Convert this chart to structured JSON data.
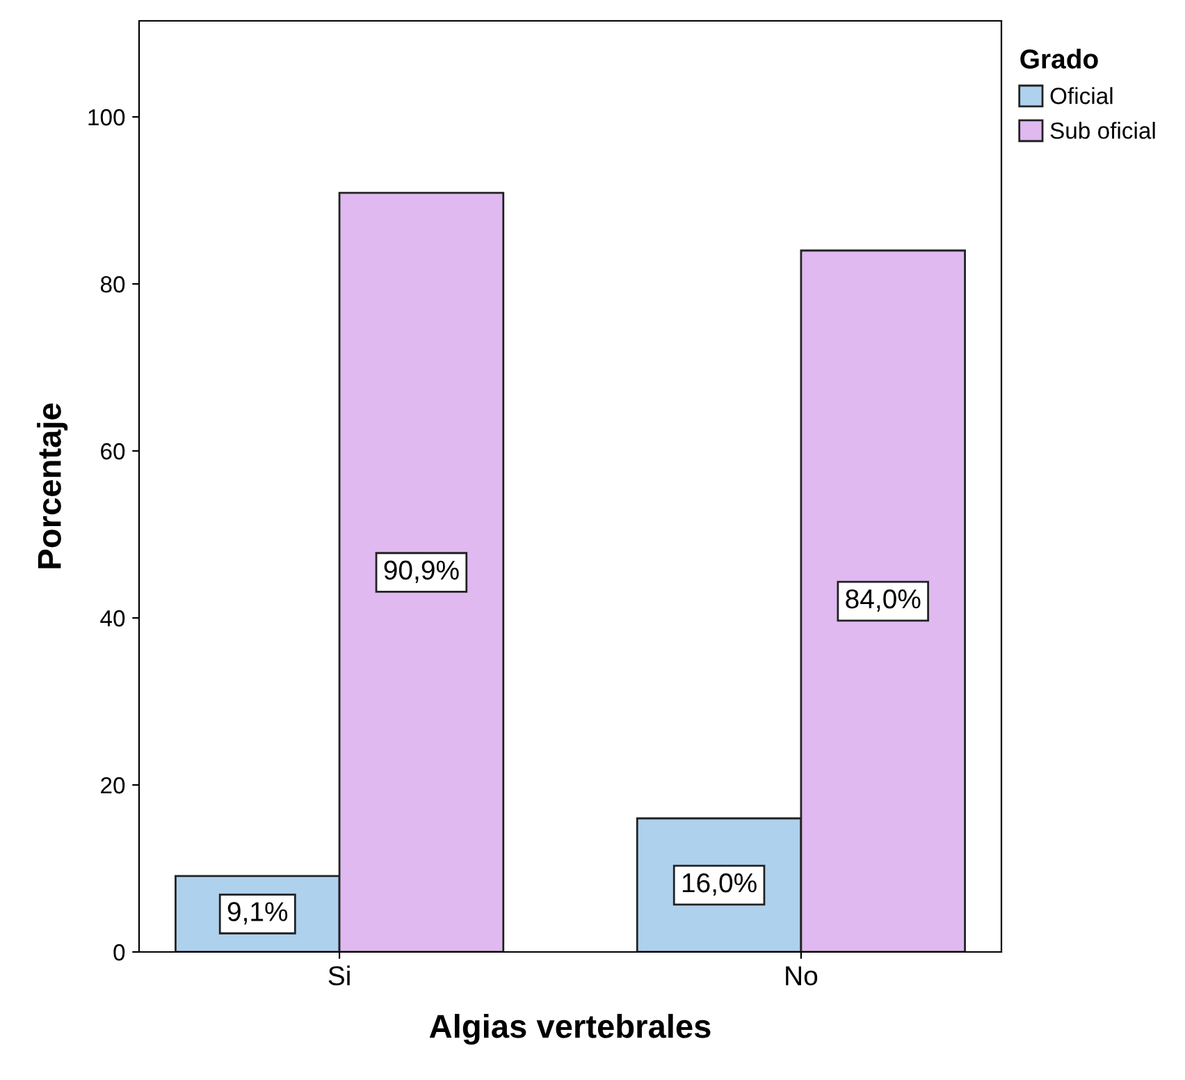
{
  "chart_data": {
    "type": "bar",
    "xlabel": "Algias vertebrales",
    "ylabel": "Porcentaje",
    "legend_title": "Grado",
    "categories": [
      "Si",
      "No"
    ],
    "series": [
      {
        "name": "Oficial",
        "color": "#aed1ee",
        "values": [
          9.1,
          16.0
        ],
        "value_labels": [
          "9,1%",
          "16,0%"
        ]
      },
      {
        "name": "Sub oficial",
        "color": "#dfb9f0",
        "values": [
          90.9,
          84.0
        ],
        "value_labels": [
          "90,9%",
          "84,0%"
        ]
      }
    ],
    "ylim": [
      0,
      111.5
    ],
    "yticks": [
      0,
      20,
      40,
      60,
      80,
      100
    ],
    "grid": false,
    "legend": "top right"
  }
}
